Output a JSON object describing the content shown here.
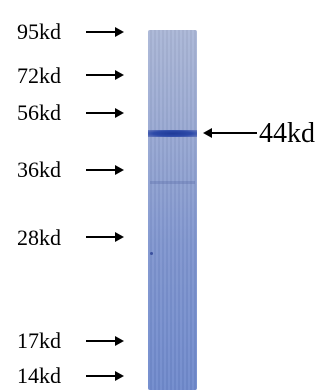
{
  "markers": [
    {
      "label": "95kd"
    },
    {
      "label": "72kd"
    },
    {
      "label": "56kd"
    },
    {
      "label": "36kd"
    },
    {
      "label": "28kd"
    },
    {
      "label": "17kd"
    },
    {
      "label": "14kd"
    }
  ],
  "band": {
    "label": "44kd"
  },
  "colors": {
    "lane": "#8fa0d0",
    "band": "#2a45a5",
    "ink": "#000000"
  }
}
